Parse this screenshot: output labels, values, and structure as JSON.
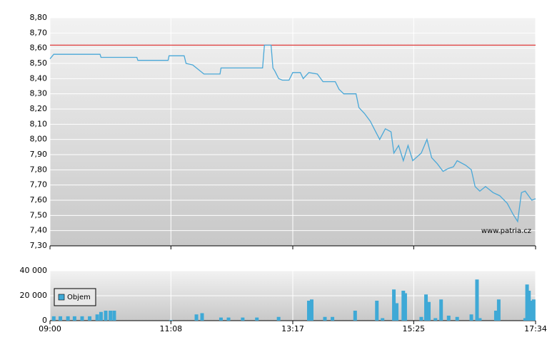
{
  "chart_data": [
    {
      "type": "line",
      "color": "#4aa8d8",
      "x": [
        "09:00",
        "09:04",
        "09:53",
        "09:54",
        "10:32",
        "10:33",
        "11:05",
        "11:06",
        "11:22",
        "11:24",
        "11:31",
        "11:35",
        "11:43",
        "12:00",
        "12:01",
        "12:45",
        "12:47",
        "12:54",
        "12:56",
        "12:58",
        "13:02",
        "13:06",
        "13:13",
        "13:17",
        "13:25",
        "13:28",
        "13:34",
        "13:43",
        "13:49",
        "14:02",
        "14:06",
        "14:11",
        "14:24",
        "14:27",
        "14:33",
        "14:39",
        "14:44",
        "14:49",
        "14:55",
        "15:01",
        "15:04",
        "15:09",
        "15:14",
        "15:19",
        "15:24",
        "15:33",
        "15:39",
        "15:44",
        "15:50",
        "15:56",
        "16:02",
        "16:07",
        "16:11",
        "16:20",
        "16:26",
        "16:30",
        "16:35",
        "16:41",
        "16:49",
        "16:56",
        "17:04",
        "17:10",
        "17:15",
        "17:19",
        "17:23",
        "17:30",
        "17:34"
      ],
      "values": [
        8.53,
        8.56,
        8.56,
        8.54,
        8.54,
        8.52,
        8.52,
        8.55,
        8.55,
        8.5,
        8.49,
        8.47,
        8.43,
        8.43,
        8.47,
        8.47,
        8.62,
        8.62,
        8.47,
        8.45,
        8.4,
        8.39,
        8.39,
        8.44,
        8.44,
        8.4,
        8.44,
        8.43,
        8.38,
        8.38,
        8.33,
        8.3,
        8.3,
        8.21,
        8.17,
        8.12,
        8.06,
        8.0,
        8.07,
        8.05,
        7.91,
        7.96,
        7.86,
        7.96,
        7.86,
        7.91,
        8.0,
        7.88,
        7.84,
        7.79,
        7.81,
        7.82,
        7.86,
        7.83,
        7.8,
        7.69,
        7.66,
        7.69,
        7.65,
        7.63,
        7.58,
        7.51,
        7.46,
        7.65,
        7.66,
        7.6,
        7.61
      ],
      "xlim": [
        "09:00",
        "17:34"
      ],
      "xticks": [
        "09:00",
        "11:08",
        "13:17",
        "15:25",
        "17:34"
      ],
      "ylim": [
        7.3,
        8.8
      ],
      "yticks": [
        {
          "value": 7.3,
          "label": "7,30"
        },
        {
          "value": 7.4,
          "label": "7,40"
        },
        {
          "value": 7.5,
          "label": "7,50"
        },
        {
          "value": 7.6,
          "label": "7,60"
        },
        {
          "value": 7.7,
          "label": "7,70"
        },
        {
          "value": 7.8,
          "label": "7,80"
        },
        {
          "value": 7.9,
          "label": "7,90"
        },
        {
          "value": 8.0,
          "label": "8,00"
        },
        {
          "value": 8.1,
          "label": "8,10"
        },
        {
          "value": 8.2,
          "label": "8,20"
        },
        {
          "value": 8.3,
          "label": "8,30"
        },
        {
          "value": 8.4,
          "label": "8,40"
        },
        {
          "value": 8.5,
          "label": "8,50"
        },
        {
          "value": 8.6,
          "label": "8,60"
        },
        {
          "value": 8.7,
          "label": "8,70"
        },
        {
          "value": 8.8,
          "label": "8,80"
        }
      ],
      "grid": true,
      "reference_line": {
        "value": 8.62,
        "color": "#e03c3c"
      },
      "watermark": "www.patria.cz"
    },
    {
      "type": "bar",
      "name": "Objem",
      "color": "#3fa9d6",
      "legend": "upper left",
      "x": [
        "09:04",
        "09:11",
        "09:19",
        "09:26",
        "09:34",
        "09:42",
        "09:50",
        "09:54",
        "09:59",
        "10:04",
        "10:08",
        "11:08",
        "11:35",
        "11:41",
        "12:01",
        "12:09",
        "12:24",
        "12:39",
        "13:02",
        "13:34",
        "13:37",
        "13:51",
        "13:59",
        "14:23",
        "14:46",
        "14:52",
        "15:04",
        "15:07",
        "15:14",
        "15:16",
        "15:33",
        "15:38",
        "15:41",
        "15:48",
        "15:54",
        "16:02",
        "16:11",
        "16:26",
        "16:32",
        "16:35",
        "16:52",
        "16:55",
        "17:23",
        "17:25",
        "17:27",
        "17:30",
        "17:32"
      ],
      "values": [
        3500,
        3500,
        3500,
        3500,
        3500,
        3500,
        5000,
        7000,
        8000,
        8000,
        8000,
        500,
        5000,
        6000,
        2500,
        2500,
        2500,
        2500,
        3000,
        16000,
        17000,
        3000,
        3000,
        8000,
        16000,
        2000,
        25000,
        14000,
        24000,
        22000,
        3000,
        21000,
        15000,
        2000,
        17000,
        4000,
        3000,
        5000,
        33000,
        2000,
        8000,
        17000,
        2000,
        29000,
        24000,
        16000,
        17000
      ],
      "xlim": [
        "09:00",
        "17:34"
      ],
      "xticks": [
        "09:00",
        "11:08",
        "13:17",
        "15:25",
        "17:34"
      ],
      "ylim": [
        0,
        40000
      ],
      "yticks": [
        0,
        {
          "value": 20000,
          "label": "20 000"
        },
        {
          "value": 40000,
          "label": "40 000"
        }
      ],
      "grid": true
    }
  ]
}
